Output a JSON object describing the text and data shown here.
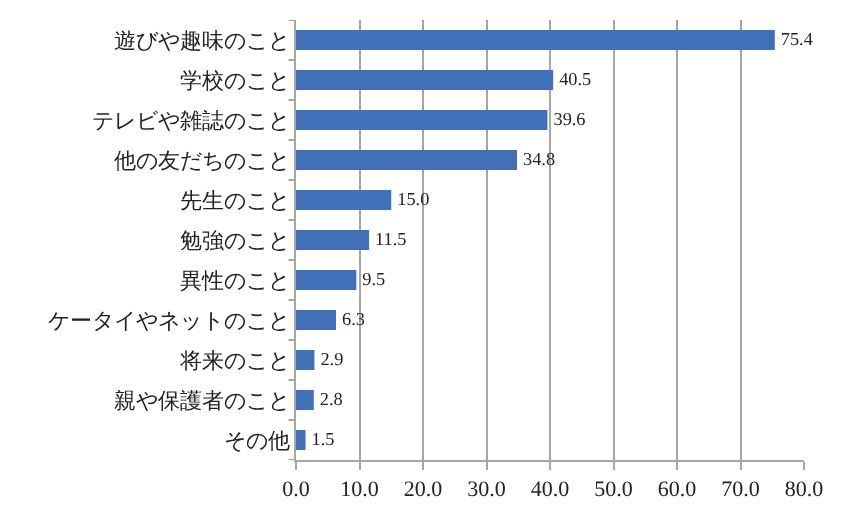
{
  "chart_data": {
    "type": "bar",
    "orientation": "horizontal",
    "categories": [
      "遊びや趣味のこと",
      "学校のこと",
      "テレビや雑誌のこと",
      "他の友だちのこと",
      "先生のこと",
      "勉強のこと",
      "異性のこと",
      "ケータイやネットのこと",
      "将来のこと",
      "親や保護者のこと",
      "その他"
    ],
    "values": [
      75.4,
      40.5,
      39.6,
      34.8,
      15.0,
      11.5,
      9.5,
      6.3,
      2.9,
      2.8,
      1.5
    ],
    "value_labels": [
      "75.4",
      "40.5",
      "39.6",
      "34.8",
      "15.0",
      "11.5",
      "9.5",
      "6.3",
      "2.9",
      "2.8",
      "1.5"
    ],
    "color": "#4270b8",
    "xlim": [
      0,
      80
    ],
    "xticks": [
      {
        "value": 0,
        "label": "0.0"
      },
      {
        "value": 10,
        "label": "10.0"
      },
      {
        "value": 20,
        "label": "20.0"
      },
      {
        "value": 30,
        "label": "30.0"
      },
      {
        "value": 40,
        "label": "40.0"
      },
      {
        "value": 50,
        "label": "50.0"
      },
      {
        "value": 60,
        "label": "60.0"
      },
      {
        "value": 70,
        "label": "70.0"
      },
      {
        "value": 80,
        "label": "80.0"
      }
    ],
    "grid": "x",
    "legend": false
  }
}
